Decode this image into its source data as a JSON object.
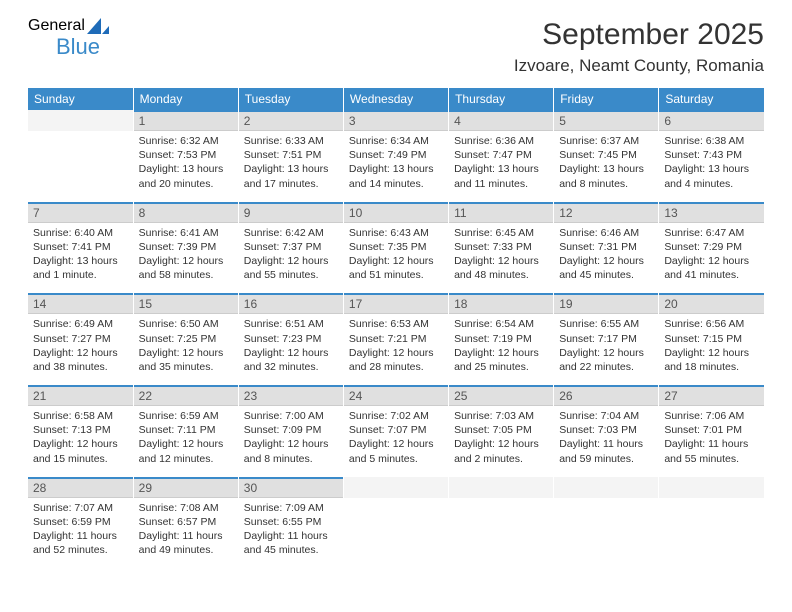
{
  "logo": {
    "general": "General",
    "blue": "Blue"
  },
  "title": "September 2025",
  "location": "Izvoare, Neamt County, Romania",
  "colors": {
    "header_bg": "#3a8ac9",
    "daynum_bg": "#e0e0e0",
    "row_accent": "#3a8ac9",
    "text": "#333333"
  },
  "day_headers": [
    "Sunday",
    "Monday",
    "Tuesday",
    "Wednesday",
    "Thursday",
    "Friday",
    "Saturday"
  ],
  "weeks": [
    [
      {
        "n": "",
        "sr": "",
        "ss": "",
        "dl": ""
      },
      {
        "n": "1",
        "sr": "Sunrise: 6:32 AM",
        "ss": "Sunset: 7:53 PM",
        "dl": "Daylight: 13 hours and 20 minutes."
      },
      {
        "n": "2",
        "sr": "Sunrise: 6:33 AM",
        "ss": "Sunset: 7:51 PM",
        "dl": "Daylight: 13 hours and 17 minutes."
      },
      {
        "n": "3",
        "sr": "Sunrise: 6:34 AM",
        "ss": "Sunset: 7:49 PM",
        "dl": "Daylight: 13 hours and 14 minutes."
      },
      {
        "n": "4",
        "sr": "Sunrise: 6:36 AM",
        "ss": "Sunset: 7:47 PM",
        "dl": "Daylight: 13 hours and 11 minutes."
      },
      {
        "n": "5",
        "sr": "Sunrise: 6:37 AM",
        "ss": "Sunset: 7:45 PM",
        "dl": "Daylight: 13 hours and 8 minutes."
      },
      {
        "n": "6",
        "sr": "Sunrise: 6:38 AM",
        "ss": "Sunset: 7:43 PM",
        "dl": "Daylight: 13 hours and 4 minutes."
      }
    ],
    [
      {
        "n": "7",
        "sr": "Sunrise: 6:40 AM",
        "ss": "Sunset: 7:41 PM",
        "dl": "Daylight: 13 hours and 1 minute."
      },
      {
        "n": "8",
        "sr": "Sunrise: 6:41 AM",
        "ss": "Sunset: 7:39 PM",
        "dl": "Daylight: 12 hours and 58 minutes."
      },
      {
        "n": "9",
        "sr": "Sunrise: 6:42 AM",
        "ss": "Sunset: 7:37 PM",
        "dl": "Daylight: 12 hours and 55 minutes."
      },
      {
        "n": "10",
        "sr": "Sunrise: 6:43 AM",
        "ss": "Sunset: 7:35 PM",
        "dl": "Daylight: 12 hours and 51 minutes."
      },
      {
        "n": "11",
        "sr": "Sunrise: 6:45 AM",
        "ss": "Sunset: 7:33 PM",
        "dl": "Daylight: 12 hours and 48 minutes."
      },
      {
        "n": "12",
        "sr": "Sunrise: 6:46 AM",
        "ss": "Sunset: 7:31 PM",
        "dl": "Daylight: 12 hours and 45 minutes."
      },
      {
        "n": "13",
        "sr": "Sunrise: 6:47 AM",
        "ss": "Sunset: 7:29 PM",
        "dl": "Daylight: 12 hours and 41 minutes."
      }
    ],
    [
      {
        "n": "14",
        "sr": "Sunrise: 6:49 AM",
        "ss": "Sunset: 7:27 PM",
        "dl": "Daylight: 12 hours and 38 minutes."
      },
      {
        "n": "15",
        "sr": "Sunrise: 6:50 AM",
        "ss": "Sunset: 7:25 PM",
        "dl": "Daylight: 12 hours and 35 minutes."
      },
      {
        "n": "16",
        "sr": "Sunrise: 6:51 AM",
        "ss": "Sunset: 7:23 PM",
        "dl": "Daylight: 12 hours and 32 minutes."
      },
      {
        "n": "17",
        "sr": "Sunrise: 6:53 AM",
        "ss": "Sunset: 7:21 PM",
        "dl": "Daylight: 12 hours and 28 minutes."
      },
      {
        "n": "18",
        "sr": "Sunrise: 6:54 AM",
        "ss": "Sunset: 7:19 PM",
        "dl": "Daylight: 12 hours and 25 minutes."
      },
      {
        "n": "19",
        "sr": "Sunrise: 6:55 AM",
        "ss": "Sunset: 7:17 PM",
        "dl": "Daylight: 12 hours and 22 minutes."
      },
      {
        "n": "20",
        "sr": "Sunrise: 6:56 AM",
        "ss": "Sunset: 7:15 PM",
        "dl": "Daylight: 12 hours and 18 minutes."
      }
    ],
    [
      {
        "n": "21",
        "sr": "Sunrise: 6:58 AM",
        "ss": "Sunset: 7:13 PM",
        "dl": "Daylight: 12 hours and 15 minutes."
      },
      {
        "n": "22",
        "sr": "Sunrise: 6:59 AM",
        "ss": "Sunset: 7:11 PM",
        "dl": "Daylight: 12 hours and 12 minutes."
      },
      {
        "n": "23",
        "sr": "Sunrise: 7:00 AM",
        "ss": "Sunset: 7:09 PM",
        "dl": "Daylight: 12 hours and 8 minutes."
      },
      {
        "n": "24",
        "sr": "Sunrise: 7:02 AM",
        "ss": "Sunset: 7:07 PM",
        "dl": "Daylight: 12 hours and 5 minutes."
      },
      {
        "n": "25",
        "sr": "Sunrise: 7:03 AM",
        "ss": "Sunset: 7:05 PM",
        "dl": "Daylight: 12 hours and 2 minutes."
      },
      {
        "n": "26",
        "sr": "Sunrise: 7:04 AM",
        "ss": "Sunset: 7:03 PM",
        "dl": "Daylight: 11 hours and 59 minutes."
      },
      {
        "n": "27",
        "sr": "Sunrise: 7:06 AM",
        "ss": "Sunset: 7:01 PM",
        "dl": "Daylight: 11 hours and 55 minutes."
      }
    ],
    [
      {
        "n": "28",
        "sr": "Sunrise: 7:07 AM",
        "ss": "Sunset: 6:59 PM",
        "dl": "Daylight: 11 hours and 52 minutes."
      },
      {
        "n": "29",
        "sr": "Sunrise: 7:08 AM",
        "ss": "Sunset: 6:57 PM",
        "dl": "Daylight: 11 hours and 49 minutes."
      },
      {
        "n": "30",
        "sr": "Sunrise: 7:09 AM",
        "ss": "Sunset: 6:55 PM",
        "dl": "Daylight: 11 hours and 45 minutes."
      },
      {
        "n": "",
        "sr": "",
        "ss": "",
        "dl": ""
      },
      {
        "n": "",
        "sr": "",
        "ss": "",
        "dl": ""
      },
      {
        "n": "",
        "sr": "",
        "ss": "",
        "dl": ""
      },
      {
        "n": "",
        "sr": "",
        "ss": "",
        "dl": ""
      }
    ]
  ]
}
